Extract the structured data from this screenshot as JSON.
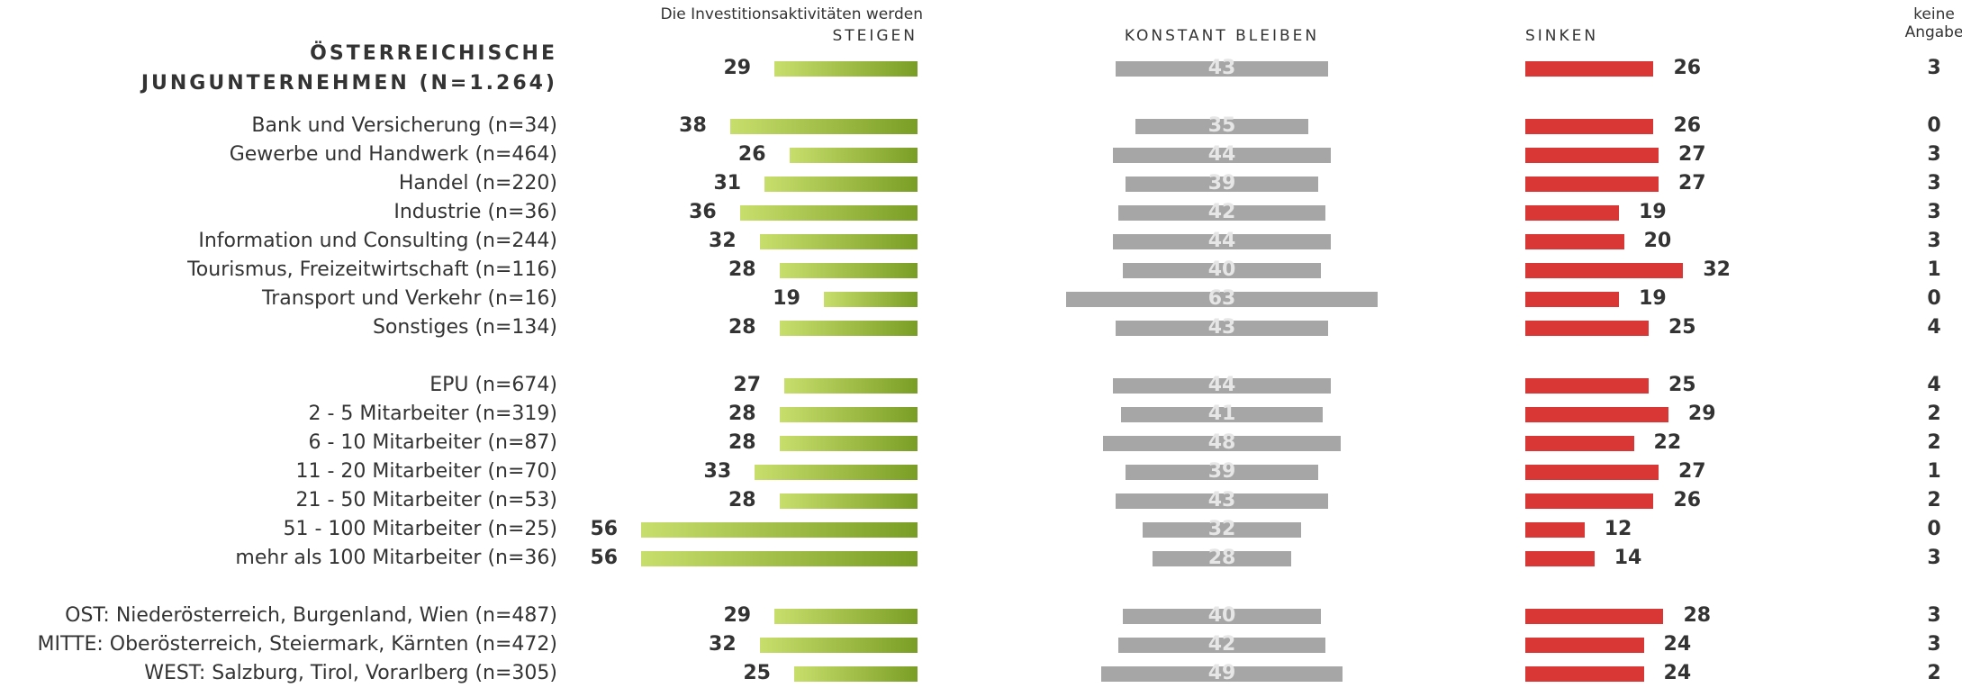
{
  "chart_data": {
    "type": "bar",
    "subtitle": "Die Investitionsaktivitäten werden",
    "categories": [
      "ÖSTERREICHISCHE\nJUNGUNTERNEHMEN (N=1.264)",
      "Bank und Versicherung (n=34)",
      "Gewerbe und Handwerk (n=464)",
      "Handel (n=220)",
      "Industrie (n=36)",
      "Information und Consulting (n=244)",
      "Tourismus, Freizeitwirtschaft (n=116)",
      "Transport und Verkehr (n=16)",
      "Sonstiges (n=134)",
      "EPU (n=674)",
      "2 - 5 Mitarbeiter (n=319)",
      "6 - 10 Mitarbeiter (n=87)",
      "11 - 20 Mitarbeiter (n=70)",
      "21 - 50 Mitarbeiter (n=53)",
      "51 - 100 Mitarbeiter (n=25)",
      "mehr als 100 Mitarbeiter (n=36)",
      "OST: Niederösterreich, Burgenland, Wien (n=487)",
      "MITTE: Oberösterreich, Steiermark, Kärnten (n=472)",
      "WEST: Salzburg, Tirol, Vorarlberg (n=305)"
    ],
    "series": [
      {
        "name": "STEIGEN",
        "color": "#7a9e25",
        "values": [
          29,
          38,
          26,
          31,
          36,
          32,
          28,
          19,
          28,
          27,
          28,
          28,
          33,
          28,
          56,
          56,
          29,
          32,
          25
        ]
      },
      {
        "name": "KONSTANT BLEIBEN",
        "color": "#a6a6a6",
        "values": [
          43,
          35,
          44,
          39,
          42,
          44,
          40,
          63,
          43,
          44,
          41,
          48,
          39,
          43,
          32,
          28,
          40,
          42,
          49
        ]
      },
      {
        "name": "SINKEN",
        "color": "#d93636",
        "values": [
          26,
          26,
          27,
          27,
          19,
          20,
          32,
          19,
          25,
          25,
          29,
          22,
          27,
          26,
          12,
          14,
          28,
          24,
          24
        ]
      },
      {
        "name": "keine\nAngabe",
        "values": [
          3,
          0,
          3,
          3,
          3,
          3,
          1,
          0,
          4,
          4,
          2,
          2,
          1,
          2,
          0,
          3,
          3,
          3,
          2
        ]
      }
    ]
  }
}
